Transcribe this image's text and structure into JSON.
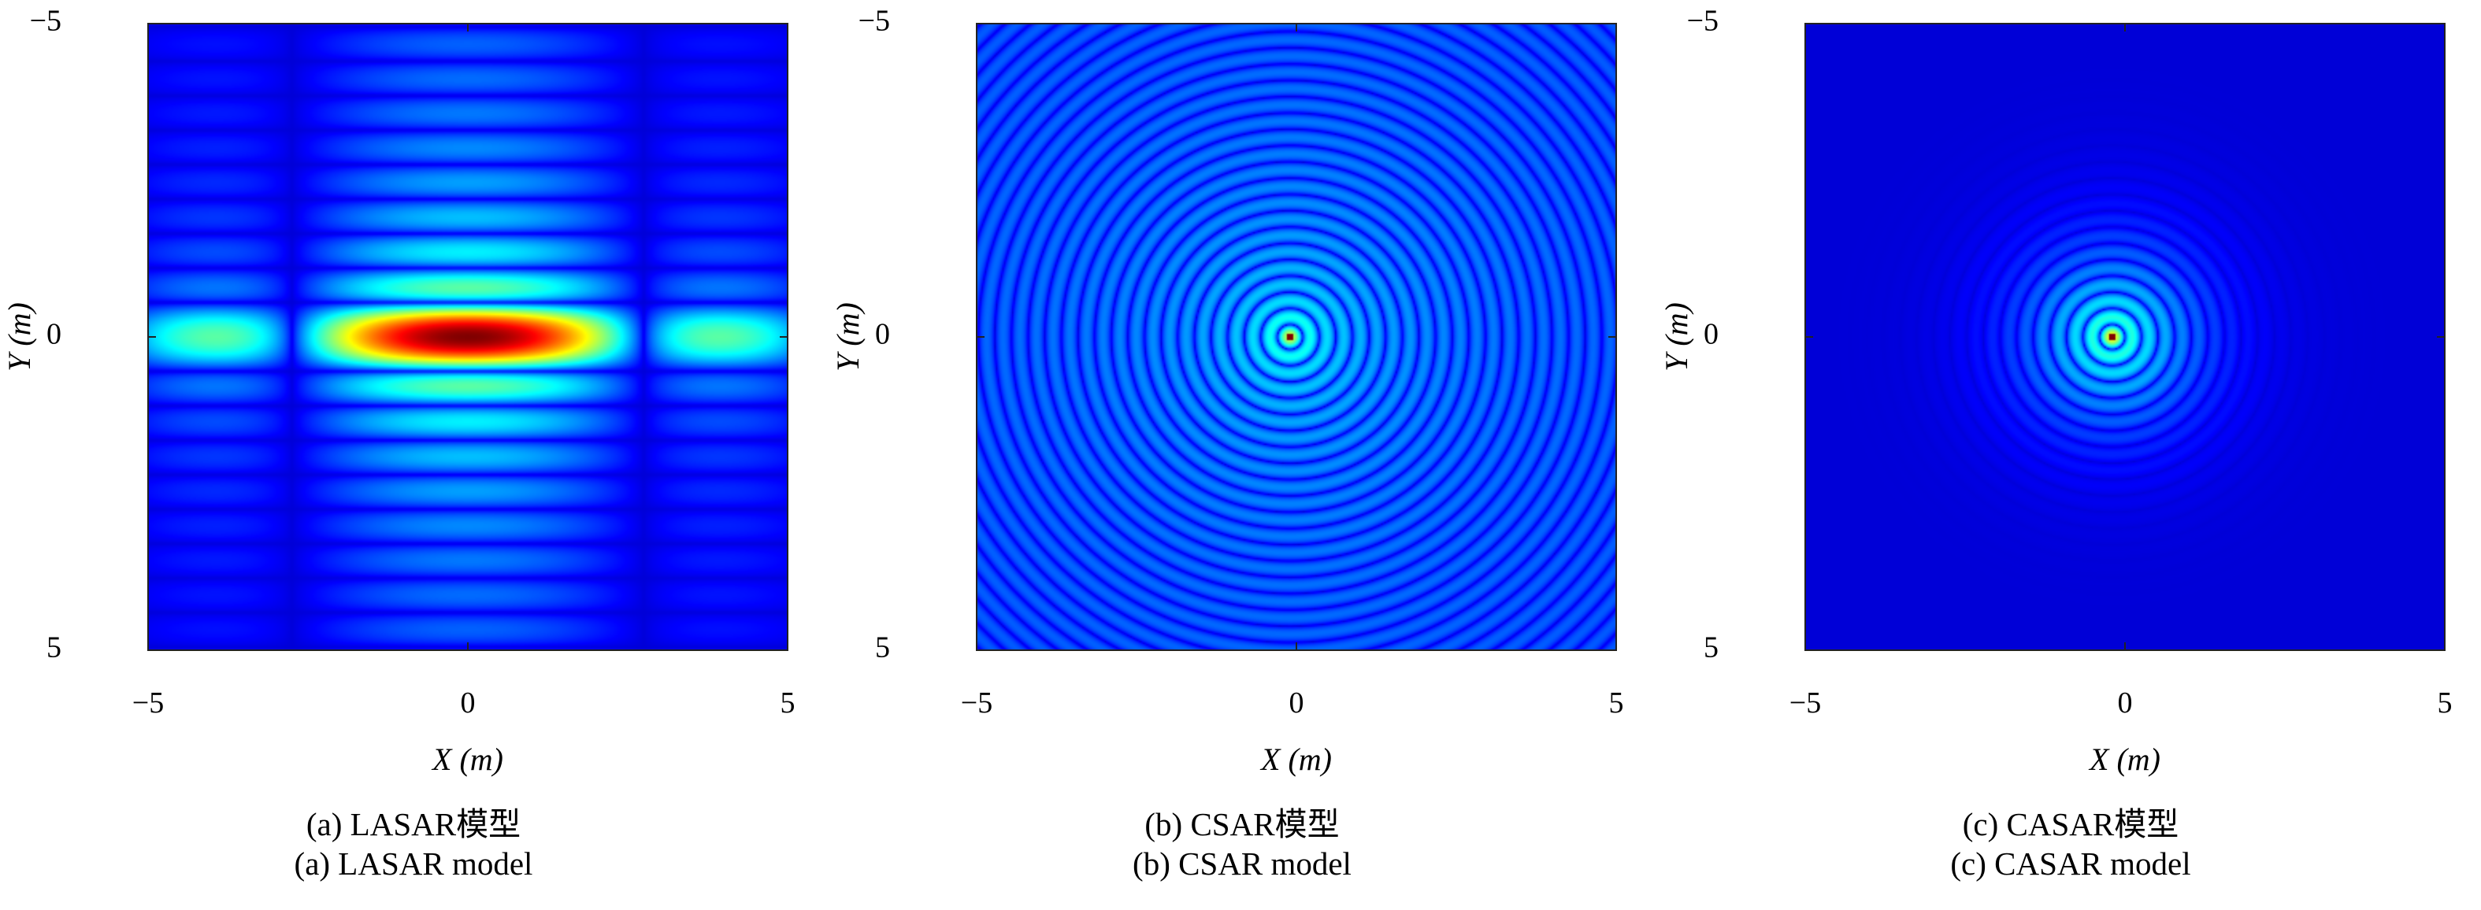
{
  "chart_data": [
    {
      "type": "heatmap",
      "model": "LASAR",
      "pattern": "separable-sinc-psf",
      "colormap": "jet",
      "xlabel": "X (m)",
      "ylabel": "Y (m)",
      "xlim": [
        -5,
        5
      ],
      "ylim": [
        -5,
        5
      ],
      "y_reversed": true,
      "xticks": [
        -5,
        0,
        5
      ],
      "yticks": [
        -5,
        0,
        5
      ],
      "xtick_labels": [
        "−5",
        "0",
        "5"
      ],
      "ytick_labels": [
        "−5",
        "0",
        "5"
      ],
      "peak": {
        "x": 0,
        "y": 0
      },
      "caption_cn": "(a) LASAR模型",
      "caption_en": "(a) LASAR model"
    },
    {
      "type": "heatmap",
      "model": "CSAR",
      "pattern": "concentric-rings-full",
      "colormap": "jet",
      "xlabel": "X (m)",
      "ylabel": "Y (m)",
      "xlim": [
        -5,
        5
      ],
      "ylim": [
        -5,
        5
      ],
      "y_reversed": true,
      "xticks": [
        -5,
        0,
        5
      ],
      "yticks": [
        -5,
        0,
        5
      ],
      "xtick_labels": [
        "−5",
        "0",
        "5"
      ],
      "ytick_labels": [
        "−5",
        "0",
        "5"
      ],
      "peak": {
        "x": -0.1,
        "y": 0
      },
      "caption_cn": "(b) CSAR模型",
      "caption_en": "(b) CSAR model"
    },
    {
      "type": "heatmap",
      "model": "CASAR",
      "pattern": "concentric-rings-damped",
      "colormap": "jet",
      "xlabel": "X (m)",
      "ylabel": "Y (m)",
      "xlim": [
        -5,
        5
      ],
      "ylim": [
        -5,
        5
      ],
      "y_reversed": true,
      "xticks": [
        -5,
        0,
        5
      ],
      "yticks": [
        -5,
        0,
        5
      ],
      "xtick_labels": [
        "−5",
        "0",
        "5"
      ],
      "ytick_labels": [
        "−5",
        "0",
        "5"
      ],
      "peak": {
        "x": -0.2,
        "y": 0
      },
      "caption_cn": "(c) CASAR模型",
      "caption_en": "(c) CASAR model"
    }
  ]
}
